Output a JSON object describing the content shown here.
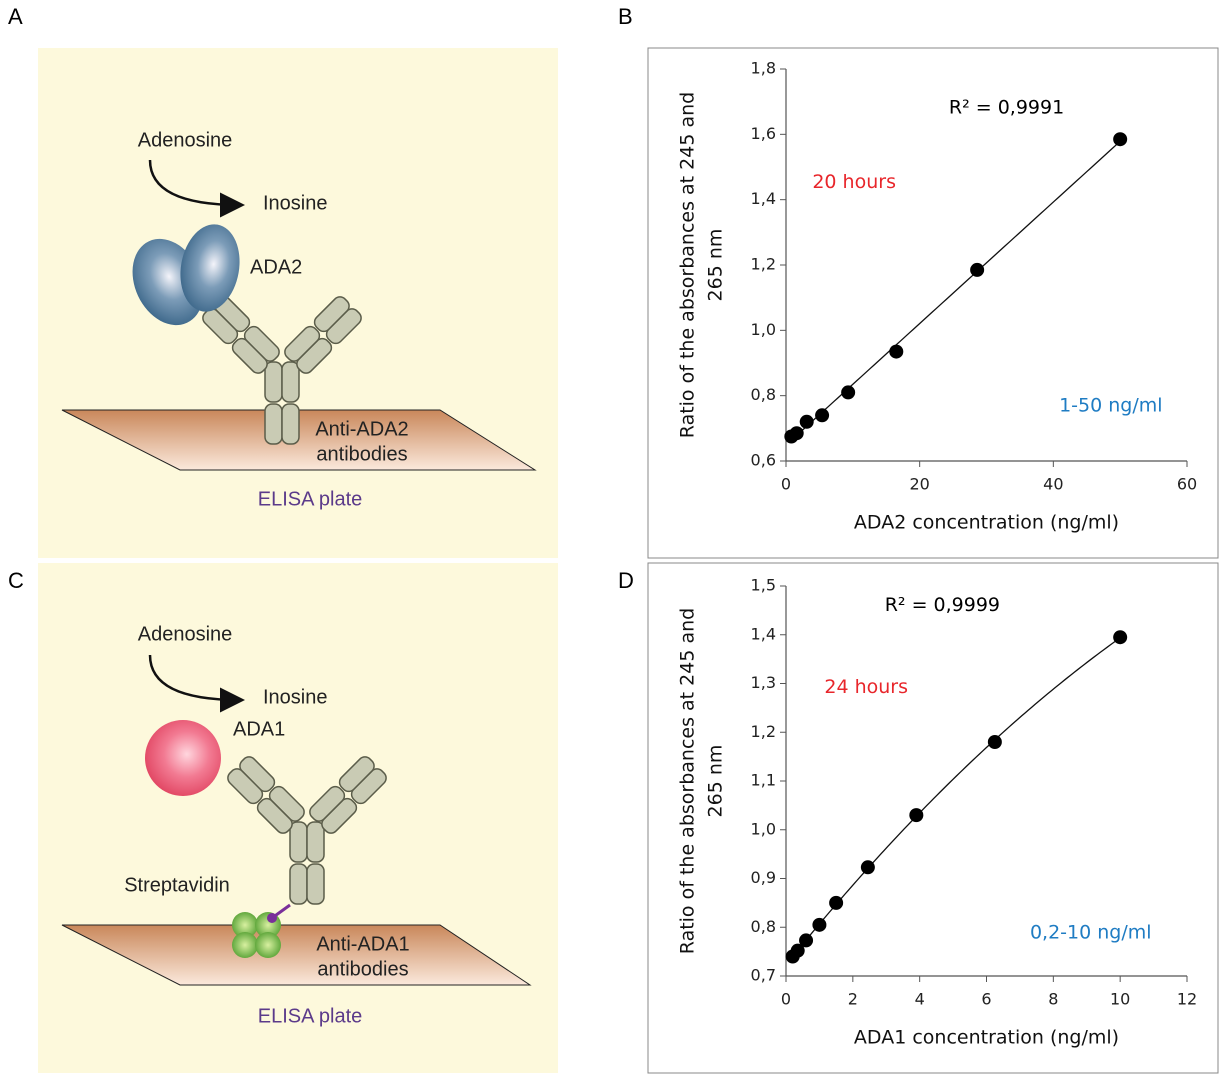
{
  "panel_labels": [
    "A",
    "B",
    "C",
    "D"
  ],
  "diagrams": [
    {
      "substrate": "Adenosine",
      "product": "Inosine",
      "enzyme": "ADA2",
      "antibody": [
        "Anti-ADA2",
        "antibodies"
      ],
      "plate": "ELISA plate"
    },
    {
      "substrate": "Adenosine",
      "product": "Inosine",
      "enzyme": "ADA1",
      "linker": "Streptavidin",
      "antibody": [
        "Anti-ADA1",
        "antibodies"
      ],
      "plate": "ELISA plate"
    }
  ],
  "chart_data": [
    {
      "type": "scatter",
      "color": "#000000",
      "xlabel": "ADA2 concentration (ng/ml)",
      "ylabel": [
        "Ratio of the absorbances at 245 and",
        "265 nm"
      ],
      "x": [
        0.8,
        1.6,
        3.1,
        5.4,
        9.3,
        16.5,
        28.6,
        50
      ],
      "values": [
        0.675,
        0.685,
        0.72,
        0.74,
        0.81,
        0.935,
        1.185,
        1.585
      ],
      "trendline": {
        "order": 1
      },
      "xlim": [
        0,
        60
      ],
      "xticks": [
        0,
        20,
        40,
        60
      ],
      "ylim": [
        0.6,
        1.8
      ],
      "yticks": [
        {
          "value": 0.6,
          "label": "0,6"
        },
        {
          "value": 0.8,
          "label": "0,8"
        },
        {
          "value": 1.0,
          "label": "1,0"
        },
        {
          "value": 1.2,
          "label": "1,2"
        },
        {
          "value": 1.4,
          "label": "1,4"
        },
        {
          "value": 1.6,
          "label": "1,6"
        },
        {
          "value": 1.8,
          "label": "1,8"
        }
      ],
      "annotations": [
        {
          "text": "R² = 0,9991",
          "color": "#000000"
        },
        {
          "text": "20 hours",
          "color": "#e8262b"
        },
        {
          "text": "1-50 ng/ml",
          "color": "#1f7cc3"
        }
      ]
    },
    {
      "type": "scatter",
      "color": "#000000",
      "xlabel": "ADA1 concentration (ng/ml)",
      "ylabel": [
        "Ratio of the absorbances at 245 and",
        "265 nm"
      ],
      "x": [
        0.2,
        0.35,
        0.6,
        1,
        1.5,
        2.45,
        3.9,
        6.25,
        10
      ],
      "values": [
        0.74,
        0.752,
        0.773,
        0.805,
        0.85,
        0.923,
        1.03,
        1.18,
        1.395
      ],
      "trendline": {
        "order": 2
      },
      "xlim": [
        0,
        12
      ],
      "xticks": [
        0,
        2,
        4,
        6,
        8,
        10,
        12
      ],
      "ylim": [
        0.7,
        1.5
      ],
      "yticks": [
        {
          "value": 0.7,
          "label": "0,7"
        },
        {
          "value": 0.8,
          "label": "0,8"
        },
        {
          "value": 0.9,
          "label": "0,9"
        },
        {
          "value": 1.0,
          "label": "1,0"
        },
        {
          "value": 1.1,
          "label": "1,1"
        },
        {
          "value": 1.2,
          "label": "1,2"
        },
        {
          "value": 1.3,
          "label": "1,3"
        },
        {
          "value": 1.4,
          "label": "1,4"
        },
        {
          "value": 1.5,
          "label": "1,5"
        }
      ],
      "annotations": [
        {
          "text": "R² = 0,9999",
          "color": "#000000"
        },
        {
          "text": "24 hours",
          "color": "#e8262b"
        },
        {
          "text": "0,2-10 ng/ml",
          "color": "#1f7cc3"
        }
      ]
    }
  ]
}
